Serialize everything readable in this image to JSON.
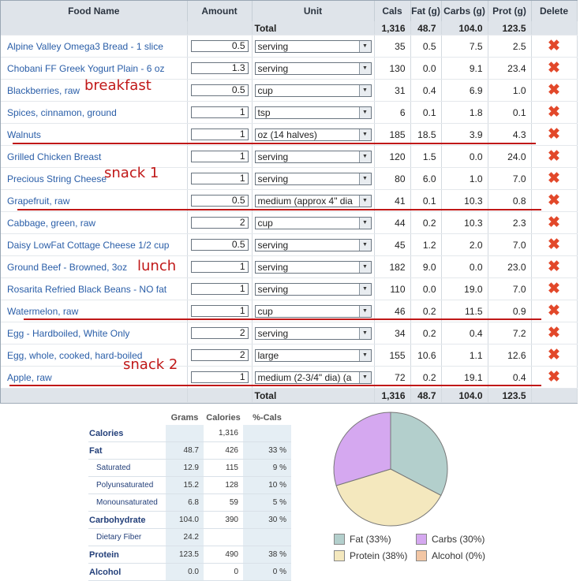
{
  "headers": {
    "food": "Food Name",
    "amount": "Amount",
    "unit": "Unit",
    "cals": "Cals",
    "fat": "Fat (g)",
    "carbs": "Carbs (g)",
    "prot": "Prot (g)",
    "del": "Delete"
  },
  "total": {
    "label": "Total",
    "cals": "1,316",
    "fat": "48.7",
    "carbs": "104.0",
    "prot": "123.5"
  },
  "rows": [
    {
      "name": "Alpine Valley Omega3 Bread - 1 slice",
      "amount": "0.5",
      "unit": "serving",
      "cals": "35",
      "fat": "0.5",
      "carbs": "7.5",
      "prot": "2.5"
    },
    {
      "name": "Chobani FF Greek Yogurt Plain - 6 oz",
      "amount": "1.3",
      "unit": "serving",
      "cals": "130",
      "fat": "0.0",
      "carbs": "9.1",
      "prot": "23.4"
    },
    {
      "name": "Blackberries, raw",
      "amount": "0.5",
      "unit": "cup",
      "cals": "31",
      "fat": "0.4",
      "carbs": "6.9",
      "prot": "1.0"
    },
    {
      "name": "Spices, cinnamon, ground",
      "amount": "1",
      "unit": "tsp",
      "cals": "6",
      "fat": "0.1",
      "carbs": "1.8",
      "prot": "0.1"
    },
    {
      "name": "Walnuts",
      "amount": "1",
      "unit": "oz (14 halves)",
      "cals": "185",
      "fat": "18.5",
      "carbs": "3.9",
      "prot": "4.3"
    },
    {
      "name": "Grilled Chicken Breast",
      "amount": "1",
      "unit": "serving",
      "cals": "120",
      "fat": "1.5",
      "carbs": "0.0",
      "prot": "24.0"
    },
    {
      "name": "Precious String Cheese",
      "amount": "1",
      "unit": "serving",
      "cals": "80",
      "fat": "6.0",
      "carbs": "1.0",
      "prot": "7.0"
    },
    {
      "name": "Grapefruit, raw",
      "amount": "0.5",
      "unit": "medium (approx 4\" dia",
      "cals": "41",
      "fat": "0.1",
      "carbs": "10.3",
      "prot": "0.8"
    },
    {
      "name": "Cabbage, green, raw",
      "amount": "2",
      "unit": "cup",
      "cals": "44",
      "fat": "0.2",
      "carbs": "10.3",
      "prot": "2.3"
    },
    {
      "name": "Daisy LowFat Cottage Cheese 1/2 cup",
      "amount": "0.5",
      "unit": "serving",
      "cals": "45",
      "fat": "1.2",
      "carbs": "2.0",
      "prot": "7.0"
    },
    {
      "name": "Ground Beef - Browned, 3oz",
      "amount": "1",
      "unit": "serving",
      "cals": "182",
      "fat": "9.0",
      "carbs": "0.0",
      "prot": "23.0"
    },
    {
      "name": "Rosarita Refried Black Beans - NO fat",
      "amount": "1",
      "unit": "serving",
      "cals": "110",
      "fat": "0.0",
      "carbs": "19.0",
      "prot": "7.0"
    },
    {
      "name": "Watermelon, raw",
      "amount": "1",
      "unit": "cup",
      "cals": "46",
      "fat": "0.2",
      "carbs": "11.5",
      "prot": "0.9"
    },
    {
      "name": "Egg - Hardboiled, White Only",
      "amount": "2",
      "unit": "serving",
      "cals": "34",
      "fat": "0.2",
      "carbs": "0.4",
      "prot": "7.2"
    },
    {
      "name": "Egg, whole, cooked, hard-boiled",
      "amount": "2",
      "unit": "large",
      "cals": "155",
      "fat": "10.6",
      "carbs": "1.1",
      "prot": "12.6"
    },
    {
      "name": "Apple, raw",
      "amount": "1",
      "unit": "medium (2-3/4\" dia) (a",
      "cals": "72",
      "fat": "0.2",
      "carbs": "19.1",
      "prot": "0.4"
    }
  ],
  "annotations": {
    "breakfast": "breakfast",
    "snack1": "snack 1",
    "lunch": "lunch",
    "snack2": "snack 2"
  },
  "nutrition": {
    "headers": [
      "Grams",
      "Calories",
      "%-Cals"
    ],
    "rows": [
      {
        "label": "Calories",
        "grams": "",
        "cal": "1,316",
        "pct": "",
        "sub": false
      },
      {
        "label": "Fat",
        "grams": "48.7",
        "cal": "426",
        "pct": "33 %",
        "sub": false
      },
      {
        "label": "Saturated",
        "grams": "12.9",
        "cal": "115",
        "pct": "9 %",
        "sub": true
      },
      {
        "label": "Polyunsaturated",
        "grams": "15.2",
        "cal": "128",
        "pct": "10 %",
        "sub": true
      },
      {
        "label": "Monounsaturated",
        "grams": "6.8",
        "cal": "59",
        "pct": "5 %",
        "sub": true
      },
      {
        "label": "Carbohydrate",
        "grams": "104.0",
        "cal": "390",
        "pct": "30 %",
        "sub": false
      },
      {
        "label": "Dietary Fiber",
        "grams": "24.2",
        "cal": "",
        "pct": "",
        "sub": true
      },
      {
        "label": "Protein",
        "grams": "123.5",
        "cal": "490",
        "pct": "38 %",
        "sub": false
      },
      {
        "label": "Alcohol",
        "grams": "0.0",
        "cal": "0",
        "pct": "0 %",
        "sub": false
      }
    ]
  },
  "chart_data": {
    "type": "pie",
    "slices": [
      {
        "name": "Fat",
        "label": "Fat (33%)",
        "value": 33,
        "color": "#b3cfcc"
      },
      {
        "name": "Carbs",
        "label": "Carbs (30%)",
        "value": 30,
        "color": "#d5a8f0"
      },
      {
        "name": "Protein",
        "label": "Protein (38%)",
        "value": 38,
        "color": "#f4e8be"
      },
      {
        "name": "Alcohol",
        "label": "Alcohol (0%)",
        "value": 0,
        "color": "#f2c6a4"
      }
    ]
  },
  "colors": {
    "accent": "#2a5ea8",
    "annotation": "#c01818",
    "delete": "#e2482a"
  }
}
